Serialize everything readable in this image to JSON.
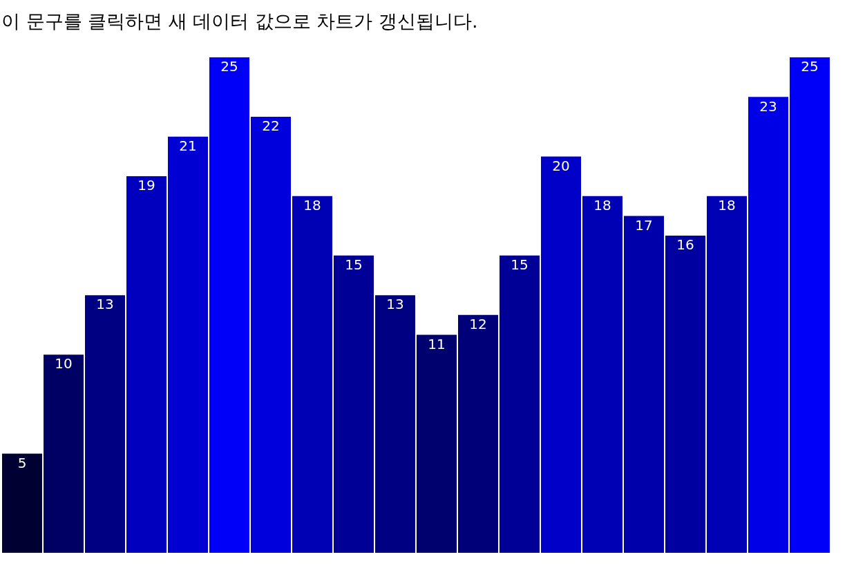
{
  "chart_data": {
    "type": "bar",
    "title": "이 문구를 클릭하면 새 데이터 값으로 차트가 갱신됩니다.",
    "categories": [
      null,
      null,
      null,
      null,
      null,
      null,
      null,
      null,
      null,
      null,
      null,
      null,
      null,
      null,
      null,
      null,
      null,
      null,
      null,
      null
    ],
    "values": [
      5,
      10,
      13,
      19,
      21,
      25,
      22,
      18,
      15,
      13,
      11,
      12,
      15,
      20,
      18,
      17,
      16,
      18,
      23,
      25
    ],
    "colors": [
      "#000032",
      "#000064",
      "#000082",
      "#0000be",
      "#0000d2",
      "#0000fa",
      "#0000dc",
      "#0000b4",
      "#000096",
      "#000082",
      "#00006e",
      "#000078",
      "#000096",
      "#0000c8",
      "#0000b4",
      "#0000aa",
      "#0000a0",
      "#0000b4",
      "#0000e6",
      "#0000fa"
    ],
    "data_labels": true
  }
}
